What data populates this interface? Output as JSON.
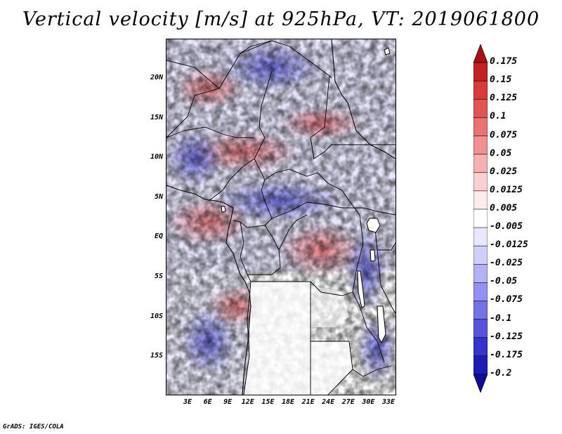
{
  "title": "Vertical velocity [m/s] at 925hPa, VT: 2019061800",
  "credit": "GrADS: IGES/COLA",
  "map": {
    "y_ticks": [
      "20N",
      "15N",
      "10N",
      "5N",
      "EQ",
      "5S",
      "10S",
      "15S"
    ],
    "x_ticks": [
      "3E",
      "6E",
      "9E",
      "12E",
      "15E",
      "18E",
      "21E",
      "24E",
      "27E",
      "30E",
      "33E"
    ]
  },
  "colorbar": {
    "labels": [
      "0.175",
      "0.15",
      "0.125",
      "0.1",
      "0.075",
      "0.05",
      "0.025",
      "0.0125",
      "0.005",
      "-0.005",
      "-0.0125",
      "-0.025",
      "-0.05",
      "-0.075",
      "-0.1",
      "-0.125",
      "-0.175",
      "-0.2"
    ],
    "colors": [
      "#a81111",
      "#c32222",
      "#d63a3a",
      "#e25555",
      "#eb7272",
      "#f19090",
      "#f6b0b0",
      "#fad0d0",
      "#fdeaea",
      "#ffffff",
      "#e7e7fd",
      "#cfcffa",
      "#b2b2f5",
      "#9292ee",
      "#7373e5",
      "#5555dc",
      "#3434cc",
      "#1c1cb3",
      "#0d0d96"
    ]
  }
}
